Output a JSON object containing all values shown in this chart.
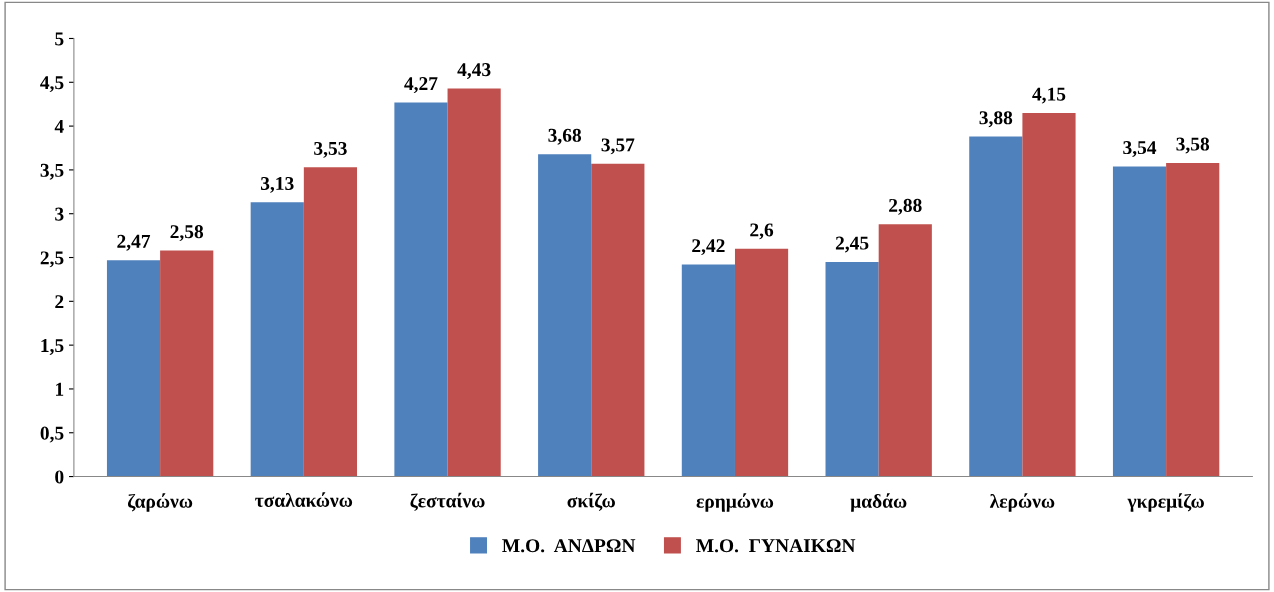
{
  "chart_data": {
    "type": "bar",
    "categories": [
      "ζαρώνω",
      "τσαλακώνω",
      "ζεσταίνω",
      "σκίζω",
      "ερημώνω",
      "μαδάω",
      "λερώνω",
      "γκρεμίζω"
    ],
    "series": [
      {
        "name": "Μ.Ο.  ΑΝΔΡΩΝ",
        "color": "#4f81bd",
        "values": [
          2.47,
          3.13,
          4.27,
          3.68,
          2.42,
          2.45,
          3.88,
          3.54
        ],
        "value_labels": [
          "2,47",
          "3,13",
          "4,27",
          "3,68",
          "2,42",
          "2,45",
          "3,88",
          "3,54"
        ]
      },
      {
        "name": "Μ.Ο.  ΓΥΝΑΙΚΩΝ",
        "color": "#c0504d",
        "values": [
          2.58,
          3.53,
          4.43,
          3.57,
          2.6,
          2.88,
          4.15,
          3.58
        ],
        "value_labels": [
          "2,58",
          "3,53",
          "4,43",
          "3,57",
          "2,6",
          "2,88",
          "4,15",
          "3,58"
        ]
      }
    ],
    "ylim": [
      0,
      5
    ],
    "yticks": [
      0,
      {
        "value": 0.5,
        "label": "0,5"
      },
      1,
      {
        "value": 1.5,
        "label": "1,5"
      },
      2,
      {
        "value": 2.5,
        "label": "2,5"
      },
      3,
      {
        "value": 3.5,
        "label": "3,5"
      },
      4,
      {
        "value": 4.5,
        "label": "4,5"
      },
      5
    ],
    "grid": false,
    "legend": "bottom"
  }
}
